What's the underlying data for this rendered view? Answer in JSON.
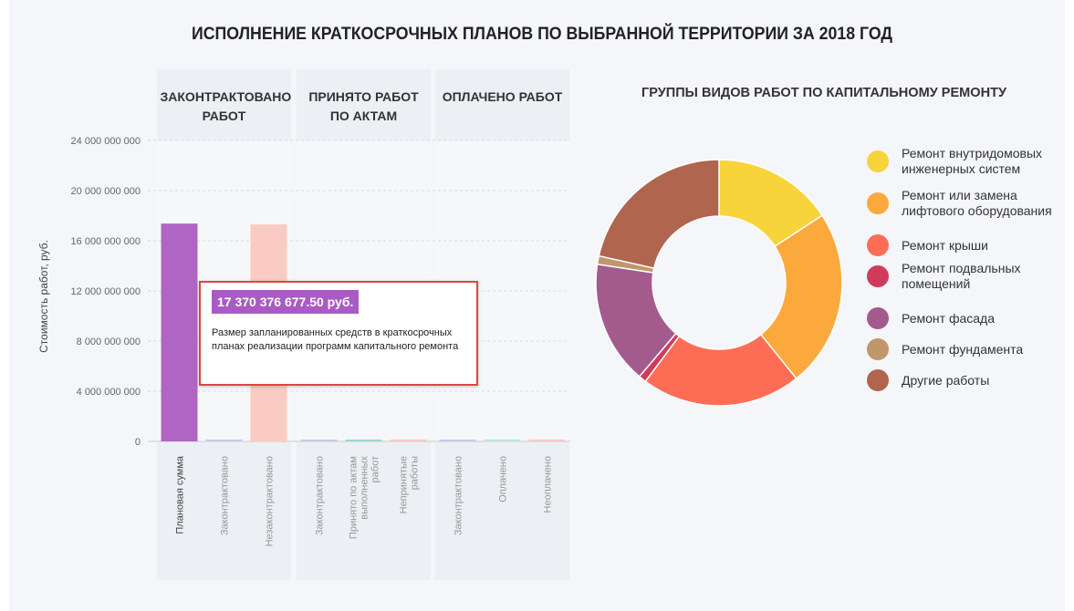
{
  "title": "ИСПОЛНЕНИЕ КРАТКОСРОЧНЫХ ПЛАНОВ ПО ВЫБРАННОЙ ТЕРРИТОРИИ ЗА 2018 ГОД",
  "chart_data": [
    {
      "type": "bar",
      "y_label": "Стоимость работ, руб.",
      "ylim": [
        0,
        24000000000
      ],
      "yticks": [
        {
          "value": 0,
          "label": "0"
        },
        {
          "value": 4000000000,
          "label": "4 000 000 000"
        },
        {
          "value": 8000000000,
          "label": "8 000 000 000"
        },
        {
          "value": 12000000000,
          "label": "12 000 000 000"
        },
        {
          "value": 16000000000,
          "label": "16 000 000 000"
        },
        {
          "value": 20000000000,
          "label": "20 000 000 000"
        },
        {
          "value": 24000000000,
          "label": "24 000 000 000"
        }
      ],
      "grid": true,
      "groups": [
        {
          "title": "ЗАКОНТРАКТОВАНО РАБОТ",
          "categories": [
            "Плановая сумма",
            "Законтрактовано",
            "Незаконтрактовано"
          ],
          "values": [
            17370376677.5,
            150000000,
            17300000000
          ],
          "colors": [
            "#b065c4",
            "#cdc6ee",
            "#f9cbc2"
          ]
        },
        {
          "title": "ПРИНЯТО РАБОТ ПО АКТАМ",
          "categories": [
            "Законтрактовано",
            "Принято по актам выполненных работ",
            "Непринятые работы"
          ],
          "values": [
            150000000,
            100000000,
            150000000
          ],
          "colors": [
            "#cdc6ee",
            "#9fd6cf",
            "#f9cbc2"
          ]
        },
        {
          "title": "ОПЛАЧЕНО РАБОТ",
          "categories": [
            "Законтрактовано",
            "Оплачено",
            "Неоплачено"
          ],
          "values": [
            150000000,
            120000000,
            150000000
          ],
          "colors": [
            "#cdc6ee",
            "#bfe3de",
            "#f9cbc2"
          ]
        }
      ],
      "tooltip": {
        "value_label": "17 370 376 677.50 руб.",
        "text": "Размер запланированных средств в краткосрочных планах реализации программ капитального ремонта"
      }
    },
    {
      "type": "donut",
      "title": "ГРУППЫ ВИДОВ РАБОТ ПО КАПИТАЛЬНОМУ РЕМОНТУ",
      "categories": [
        "Ремонт внутридомовых инженерных систем",
        "Ремонт или замена лифтового оборудования",
        "Ремонт крыши",
        "Ремонт подвальных помещений",
        "Ремонт фасада",
        "Ремонт фундамента",
        "Другие работы"
      ],
      "values": [
        15.8,
        23.4,
        21.0,
        1.0,
        16.2,
        1.1,
        21.5
      ],
      "colors": [
        "#f8d43b",
        "#fba93c",
        "#fd6d56",
        "#d03b5b",
        "#a35b8e",
        "#c0976a",
        "#b0654f"
      ]
    }
  ]
}
